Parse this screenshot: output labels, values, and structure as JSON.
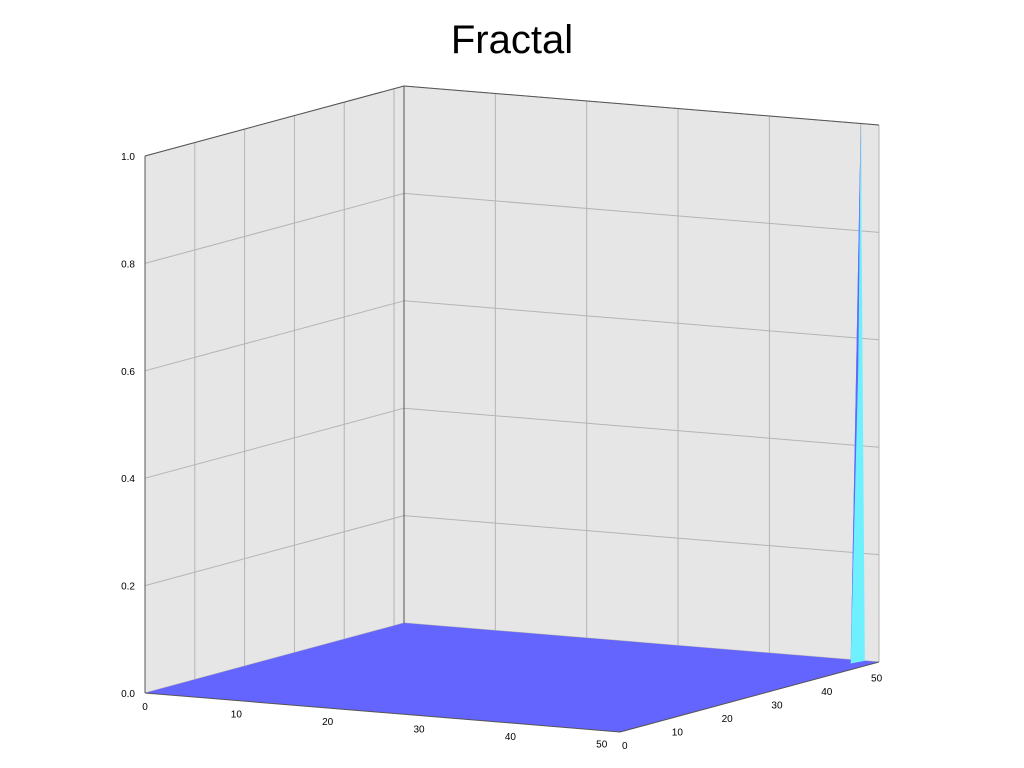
{
  "chart_data": {
    "type": "surface-3d",
    "title": "Fractal",
    "xlabel": "",
    "ylabel": "",
    "zlabel": "",
    "x_ticks": [
      "0",
      "10",
      "20",
      "30",
      "40",
      "50"
    ],
    "y_ticks": [
      "0",
      "10",
      "20",
      "30",
      "40",
      "50"
    ],
    "z_ticks": [
      "0.0",
      "0.2",
      "0.4",
      "0.6",
      "0.8",
      "1.0"
    ],
    "x_range": [
      0,
      52
    ],
    "y_range": [
      0,
      52
    ],
    "z_range": [
      0,
      1
    ],
    "grid": true,
    "surface": {
      "baseline_value": 0,
      "peak": {
        "x": 50,
        "y": 52,
        "z": 1.0
      }
    },
    "colors": {
      "surface": "#6464ff",
      "peak_highlight": "#6ef0ff",
      "wall": "#e6e6e6",
      "grid": "#b4b4b4",
      "axis": "#555555"
    }
  }
}
